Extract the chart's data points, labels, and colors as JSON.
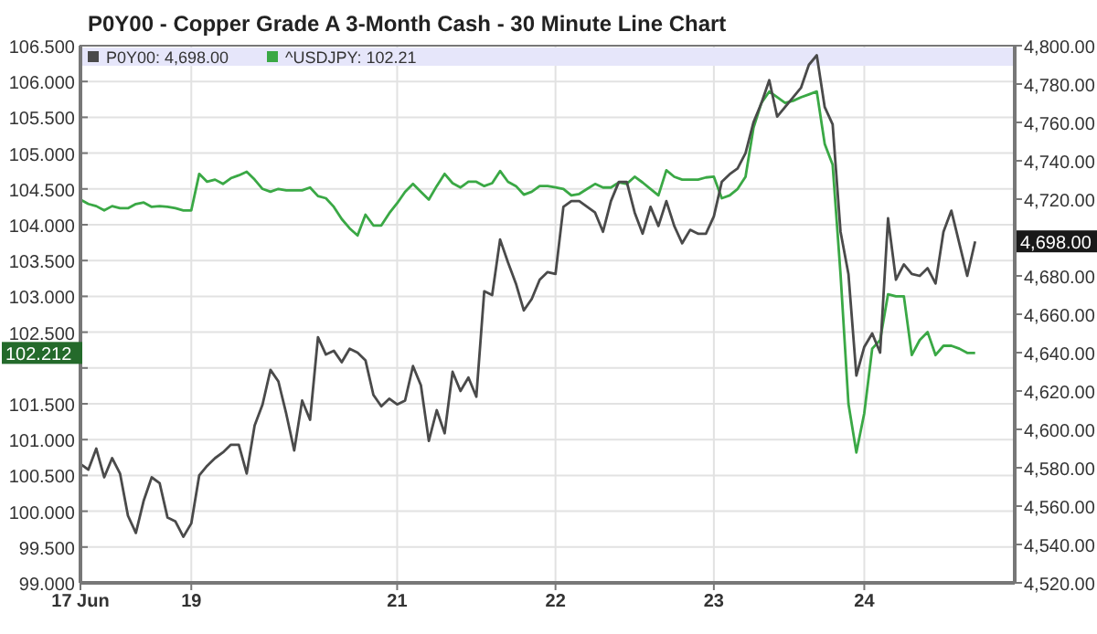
{
  "chart_data": {
    "type": "line",
    "title": "P0Y00 - Copper Grade A 3-Month Cash - 30 Minute Line Chart",
    "categories": [
      "17 Jun",
      null,
      null,
      null,
      null,
      null,
      null,
      null,
      null,
      null,
      null,
      null,
      null,
      null,
      "19",
      null,
      null,
      null,
      null,
      null,
      null,
      null,
      null,
      null,
      null,
      null,
      null,
      null,
      null,
      null,
      null,
      null,
      null,
      null,
      null,
      null,
      null,
      null,
      null,
      null,
      "21",
      null,
      null,
      null,
      null,
      null,
      null,
      null,
      null,
      null,
      null,
      null,
      null,
      null,
      null,
      null,
      null,
      null,
      null,
      null,
      "22",
      null,
      null,
      null,
      null,
      null,
      null,
      null,
      null,
      null,
      null,
      null,
      null,
      null,
      null,
      null,
      null,
      null,
      null,
      null,
      "23",
      null,
      null,
      null,
      null,
      null,
      null,
      null,
      null,
      null,
      null,
      null,
      null,
      null,
      null,
      null,
      null,
      null,
      null,
      "24",
      null,
      null,
      null,
      null,
      null,
      null,
      null,
      null,
      null,
      null,
      null,
      null,
      null,
      null,
      null,
      null,
      null,
      null,
      null
    ],
    "ylim": [
      99,
      106.5
    ],
    "yticks": [
      {
        "value": 99,
        "label": "99.000"
      },
      {
        "value": 99.5,
        "label": "99.500"
      },
      {
        "value": 100,
        "label": "100.000"
      },
      {
        "value": 100.5,
        "label": "100.500"
      },
      {
        "value": 101,
        "label": "101.000"
      },
      {
        "value": 101.5,
        "label": "101.500"
      },
      {
        "value": 102,
        "label": null
      },
      {
        "value": 102.5,
        "label": "102.500"
      },
      {
        "value": 103,
        "label": "103.000"
      },
      {
        "value": 103.5,
        "label": "103.500"
      },
      {
        "value": 104,
        "label": "104.000"
      },
      {
        "value": 104.5,
        "label": "104.500"
      },
      {
        "value": 105,
        "label": "105.000"
      },
      {
        "value": 105.5,
        "label": "105.500"
      },
      {
        "value": 106,
        "label": "106.000"
      },
      {
        "value": 106.5,
        "label": "106.500"
      }
    ],
    "y2lim": [
      4520,
      4800
    ],
    "y2ticks": [
      {
        "value": 4520,
        "label": "4,520.00"
      },
      {
        "value": 4540,
        "label": "4,540.00"
      },
      {
        "value": 4560,
        "label": "4,560.00"
      },
      {
        "value": 4580,
        "label": "4,580.00"
      },
      {
        "value": 4600,
        "label": "4,600.00"
      },
      {
        "value": 4620,
        "label": "4,620.00"
      },
      {
        "value": 4640,
        "label": "4,640.00"
      },
      {
        "value": 4660,
        "label": "4,660.00"
      },
      {
        "value": 4680,
        "label": "4,680.00"
      },
      {
        "value": 4700,
        "label": null
      },
      {
        "value": 4720,
        "label": "4,720.00"
      },
      {
        "value": 4740,
        "label": "4,740.00"
      },
      {
        "value": 4760,
        "label": "4,760.00"
      },
      {
        "value": 4780,
        "label": "4,780.00"
      },
      {
        "value": 4800,
        "label": "4,800.00"
      }
    ],
    "grid": true,
    "legend": "top left",
    "line_style": "solid",
    "annotations": [
      "102.212",
      "4,698.00"
    ],
    "series": [
      {
        "name": "^USDJPY: 102.21",
        "color": "#3aa845",
        "axis": "y",
        "values": [
          104.35,
          104.29,
          104.26,
          104.2,
          104.26,
          104.23,
          104.23,
          104.29,
          104.31,
          104.25,
          104.26,
          104.25,
          104.23,
          104.2,
          104.2,
          104.71,
          104.6,
          104.63,
          104.57,
          104.65,
          104.69,
          104.74,
          104.63,
          104.5,
          104.46,
          104.5,
          104.48,
          104.48,
          104.48,
          104.52,
          104.4,
          104.37,
          104.25,
          104.08,
          103.95,
          103.85,
          104.14,
          103.99,
          103.99,
          104.16,
          104.3,
          104.46,
          104.57,
          104.46,
          104.35,
          104.54,
          104.71,
          104.58,
          104.52,
          104.6,
          104.6,
          104.54,
          104.58,
          104.75,
          104.6,
          104.54,
          104.42,
          104.46,
          104.54,
          104.54,
          104.52,
          104.5,
          104.41,
          104.43,
          104.5,
          104.57,
          104.52,
          104.52,
          104.59,
          104.57,
          104.67,
          104.59,
          104.5,
          104.41,
          104.76,
          104.67,
          104.63,
          104.63,
          104.63,
          104.66,
          104.67,
          104.37,
          104.41,
          104.5,
          104.67,
          105.35,
          105.7,
          105.86,
          105.78,
          105.7,
          105.73,
          105.78,
          105.82,
          105.86,
          105.13,
          104.84,
          103.31,
          101.5,
          100.82,
          101.37,
          102.27,
          102.39,
          103.03,
          103.0,
          103.0,
          102.18,
          102.39,
          102.5,
          102.18,
          102.31,
          102.31,
          102.27,
          102.21,
          102.21,
          null,
          null,
          null,
          null,
          null
        ]
      },
      {
        "name": "P0Y00: 4,698.00",
        "color": "#4a4a4a",
        "axis": "y2",
        "values": [
          4582,
          4579,
          4590,
          4575,
          4585,
          4577,
          4555,
          4546,
          4563,
          4575,
          4572,
          4554,
          4552,
          4544,
          4551,
          4576,
          4581,
          4585,
          4588,
          4592,
          4592,
          4577,
          4602,
          4613,
          4631,
          4625,
          4608,
          4589,
          4615,
          4605,
          4648,
          4639,
          4641,
          4635,
          4642,
          4640,
          4636,
          4618,
          4612,
          4616,
          4613,
          4615,
          4633,
          4623,
          4594,
          4610,
          4598,
          4630,
          4620,
          4627,
          4617,
          4672,
          4670,
          4699,
          4687,
          4676,
          4662,
          4668,
          4678,
          4682,
          4681,
          4716,
          4719,
          4719,
          4716,
          4713,
          4703,
          4719,
          4729,
          4729,
          4713,
          4702,
          4716,
          4706,
          4719,
          4706,
          4697,
          4704,
          4702,
          4702,
          4711,
          4729,
          4733,
          4736,
          4744,
          4760,
          4770,
          4782,
          4763,
          4768,
          4773,
          4778,
          4790,
          4795,
          4768,
          4759,
          4703,
          4681,
          4628,
          4643,
          4650,
          4640,
          4710,
          4678,
          4686,
          4681,
          4680,
          4684,
          4676,
          4703,
          4714,
          4697,
          4680,
          4698,
          null,
          null,
          null,
          null,
          null
        ]
      }
    ]
  }
}
